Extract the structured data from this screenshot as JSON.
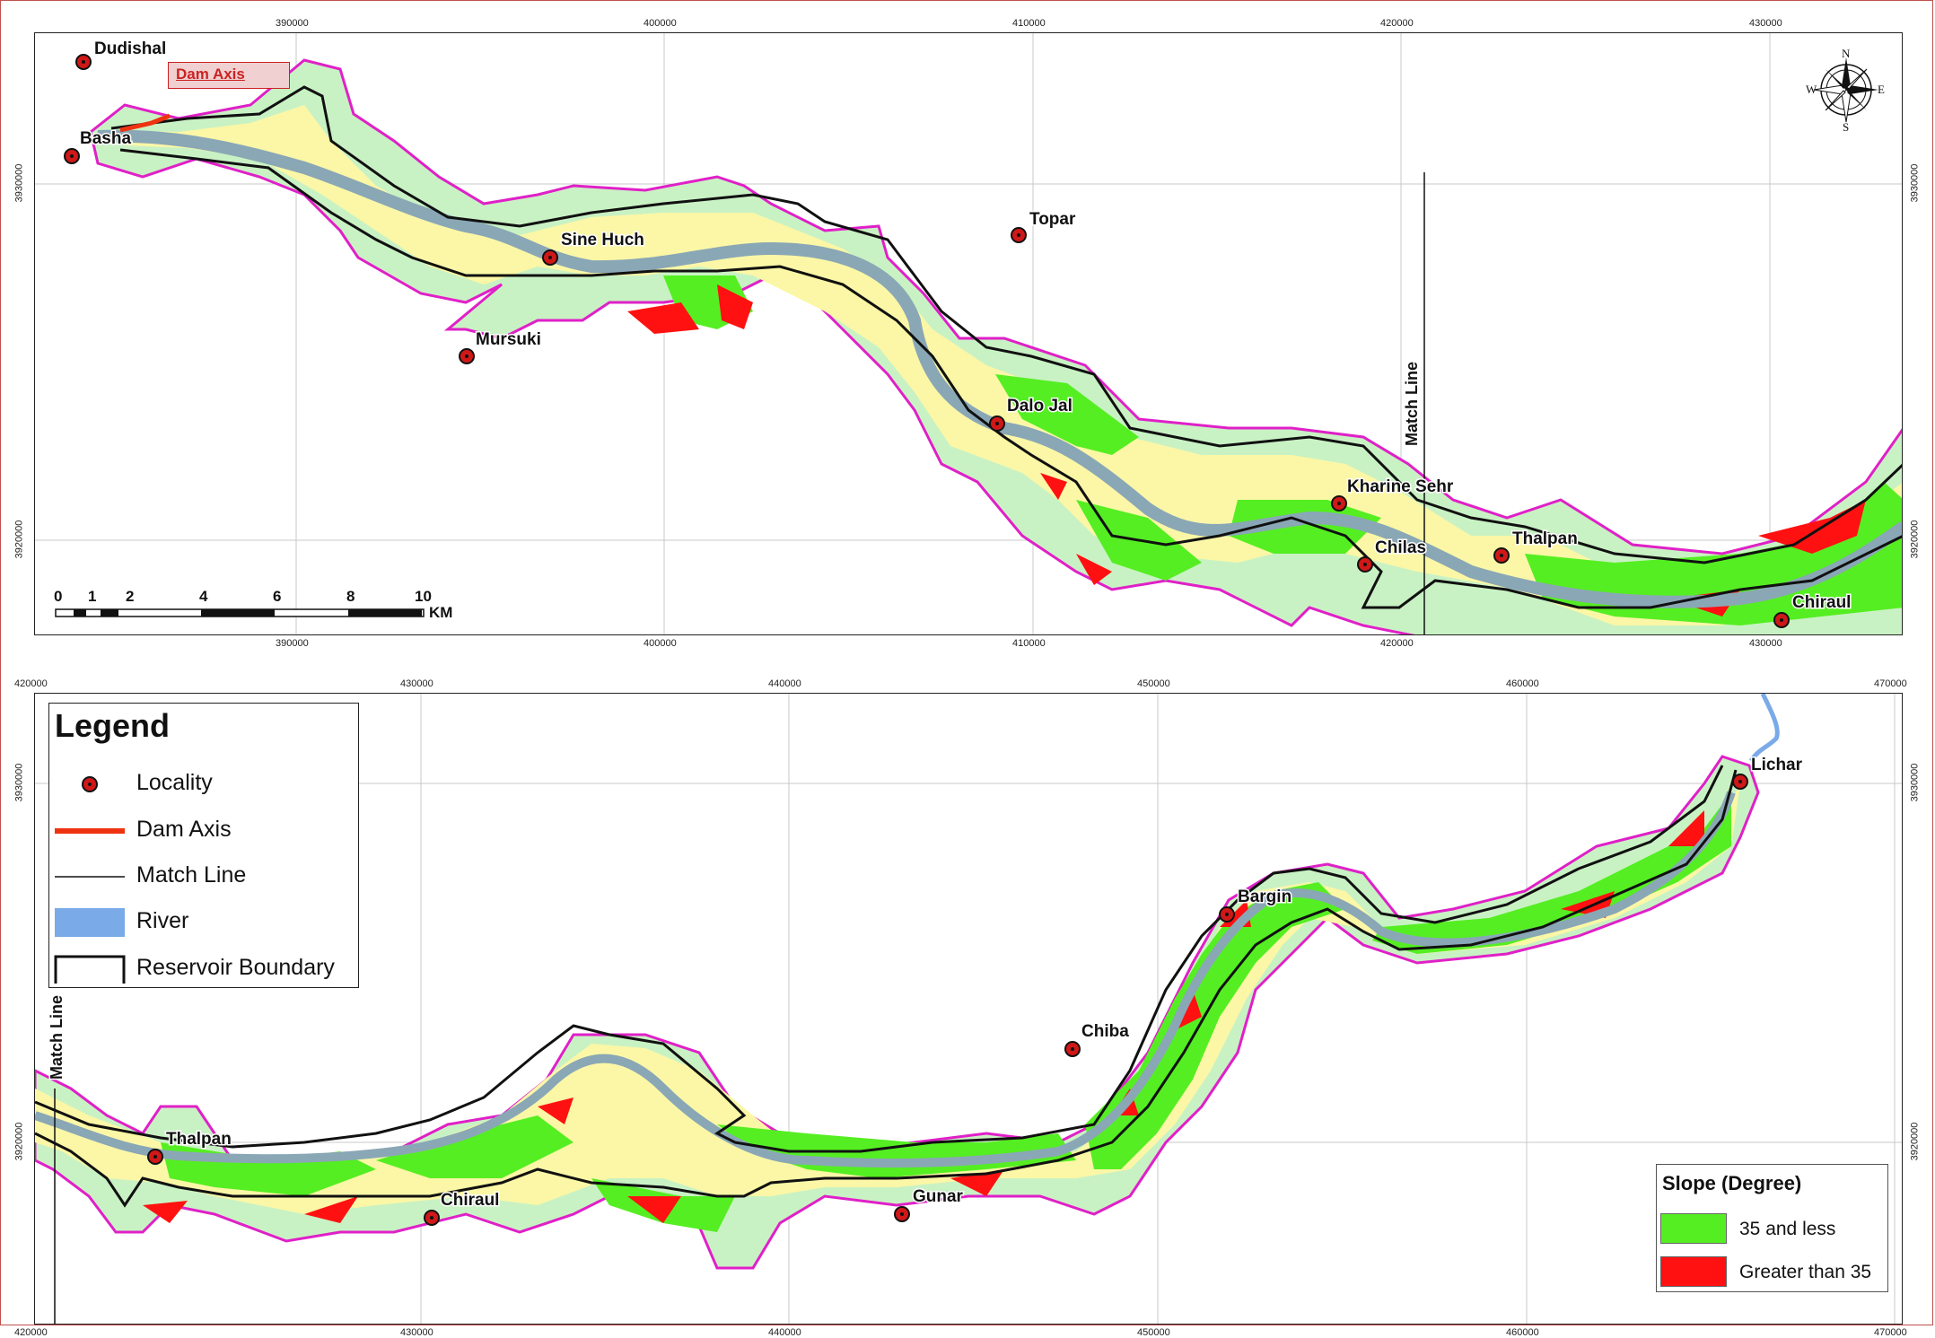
{
  "top_panel": {
    "x_ticks": [
      "390000",
      "400000",
      "410000",
      "420000",
      "430000"
    ],
    "y_ticks": [
      "3930000",
      "3920000"
    ],
    "localities": [
      {
        "name": "Dudishal"
      },
      {
        "name": "Basha"
      },
      {
        "name": "Sine Huch"
      },
      {
        "name": "Topar"
      },
      {
        "name": "Mursuki"
      },
      {
        "name": "Dalo Jal"
      },
      {
        "name": "Kharine Sehr"
      },
      {
        "name": "Chilas"
      },
      {
        "name": "Thalpan"
      },
      {
        "name": "Chiraul"
      }
    ],
    "dam_axis_callout": "Dam Axis",
    "match_line_label": "Match Line",
    "scale_bar": {
      "labels": [
        "0",
        "1",
        "2",
        "4",
        "6",
        "8",
        "10"
      ],
      "unit": "KM"
    },
    "compass": {
      "n": "N",
      "s": "S",
      "e": "E",
      "w": "W"
    }
  },
  "bottom_panel": {
    "x_ticks": [
      "420000",
      "430000",
      "440000",
      "450000",
      "460000",
      "470000"
    ],
    "y_ticks": [
      "3930000",
      "3920000"
    ],
    "localities": [
      {
        "name": "Lichar"
      },
      {
        "name": "Bargin"
      },
      {
        "name": "Chiba"
      },
      {
        "name": "Thalpan"
      },
      {
        "name": "Chiraul"
      },
      {
        "name": "Gunar"
      }
    ],
    "match_line_label": "Match Line"
  },
  "legend": {
    "title": "Legend",
    "items": [
      {
        "label": "Locality",
        "icon": "locality-dot-icon"
      },
      {
        "label": "Dam Axis",
        "icon": "dam-axis-line-icon"
      },
      {
        "label": "Match Line",
        "icon": "match-line-icon"
      },
      {
        "label": "River",
        "icon": "river-swatch-icon"
      },
      {
        "label": "Reservoir Boundary",
        "icon": "reservoir-boundary-icon"
      }
    ]
  },
  "slope_legend": {
    "title": "Slope (Degree)",
    "items": [
      {
        "label": "35 and less",
        "color": "#55ee22"
      },
      {
        "label": "Greater than 35",
        "color": "#ff1111"
      }
    ]
  },
  "colors": {
    "buffer_magenta": "#e020c8",
    "buffer_fill": "#c9f2c4",
    "reservoir_fill": "#fbf7a6",
    "slope_low": "#55ee22",
    "slope_high": "#ff1111",
    "river": "#8aa7b6",
    "river_upstream": "#7aaae8",
    "locality": "#d01818",
    "dam_axis": "#ee3311"
  }
}
